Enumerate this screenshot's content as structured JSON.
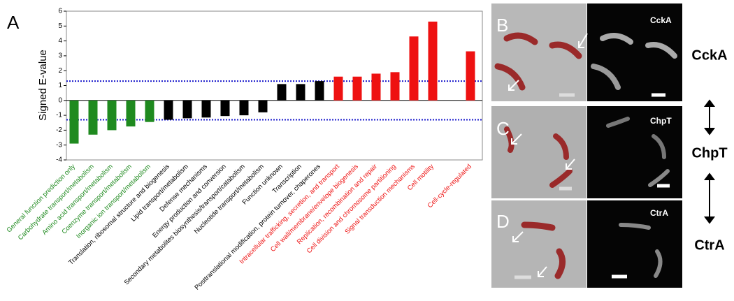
{
  "chart_data": {
    "type": "bar",
    "panel_label": "A",
    "y_label": "Signed E-value",
    "categories": [
      "General function prediction only",
      "Carbohydrate transport/metabolism",
      "Amino acid transport/metabolism",
      "Coenzyme transport/metabolism",
      "Inorganic ion transport/metabolism",
      "Translation, ribosomal structure and biogenesis",
      "Lipid transport/metabolism",
      "Defense mechanisms",
      "Energy production and conversion",
      "Secondary metabolites biosynthesis/transport/catabolism",
      "Nucleotide transport/metabolism",
      "Function unknown",
      "Transcription",
      "Posttranslational modification, protein turnover, chaperones",
      "Intracellular trafficking, secretion, and transport",
      "Cell wall/membrane/envelope biogenesis",
      "Replication, recombination and repair",
      "Cell division and chromosome partitioning",
      "Signal transduction mechanisms",
      "Cell motility",
      null,
      "Cell-cycle-regulated"
    ],
    "values": [
      -2.9,
      -2.3,
      -2.0,
      -1.75,
      -1.45,
      -1.3,
      -1.2,
      -1.15,
      -1.05,
      -1.0,
      -0.8,
      1.1,
      1.1,
      1.3,
      1.6,
      1.6,
      1.8,
      1.9,
      4.3,
      5.3,
      null,
      3.3
    ],
    "colors": [
      "#1f8a1f",
      "#1f8a1f",
      "#1f8a1f",
      "#1f8a1f",
      "#1f8a1f",
      "#000000",
      "#000000",
      "#000000",
      "#000000",
      "#000000",
      "#000000",
      "#000000",
      "#000000",
      "#000000",
      "#ee1111",
      "#ee1111",
      "#ee1111",
      "#ee1111",
      "#ee1111",
      "#ee1111",
      "#ee1111",
      "#ee1111"
    ],
    "threshold_lines": [
      1.3,
      -1.3
    ],
    "threshold_color": "#1a1acc",
    "ylim": [
      -4,
      6
    ],
    "yticks": [
      -4,
      -3,
      -2,
      -1,
      0,
      1,
      2,
      3,
      4,
      5,
      6
    ]
  },
  "panels": [
    {
      "letter": "B",
      "image_label": "CckA"
    },
    {
      "letter": "C",
      "image_label": "ChpT"
    },
    {
      "letter": "D",
      "image_label": "CtrA"
    }
  ],
  "side_labels": [
    "CckA",
    "ChpT",
    "CtrA"
  ]
}
